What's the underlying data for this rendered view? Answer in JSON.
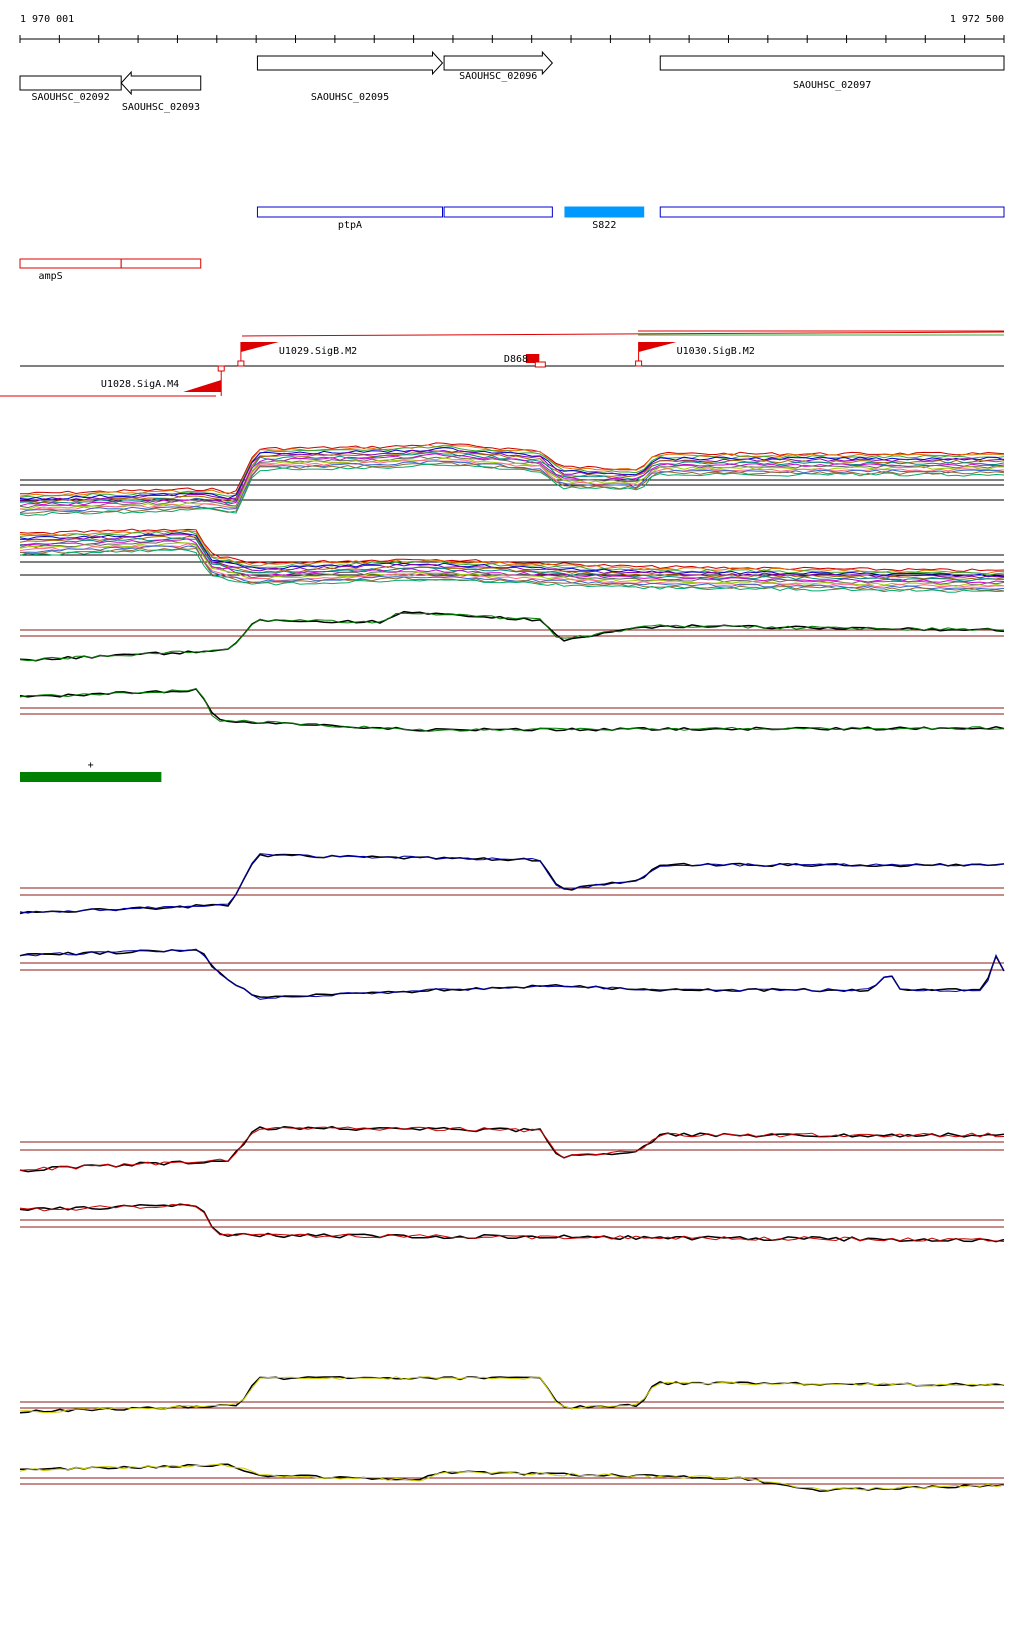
{
  "ruler": {
    "start_label": "1 970 001",
    "end_label": "1 972 500",
    "start": 1970001,
    "end": 1972500
  },
  "colors": {
    "gene_outline": "#000000",
    "feature_blue": "#0000cc",
    "feature_blue_fill": "#0099ff",
    "feature_red": "#dd0000",
    "green": "#008000",
    "blue": "#0000aa",
    "red": "#cc0000",
    "yellow": "#cccc00",
    "baseline": "#8b1a1a"
  },
  "genes": [
    {
      "label": "SAOUHSC_02092",
      "start": 1970001,
      "end": 1970258,
      "strand": "none",
      "row": 0
    },
    {
      "label": "SAOUHSC_02093",
      "start": 1970258,
      "end": 1970460,
      "strand": "-",
      "row": 0
    },
    {
      "label": "SAOUHSC_02095",
      "start": 1970604,
      "end": 1971074,
      "strand": "+",
      "row": 1
    },
    {
      "label": "SAOUHSC_02096",
      "start": 1971078,
      "end": 1971353,
      "strand": "+",
      "row": 1
    },
    {
      "label": "SAOUHSC_02097",
      "start": 1971627,
      "end": 1972500,
      "strand": "none",
      "row": 1
    }
  ],
  "blue_features": [
    {
      "label": "ptpA",
      "start": 1970604,
      "end": 1971074,
      "filled": false
    },
    {
      "label": "",
      "start": 1971078,
      "end": 1971353,
      "filled": false
    },
    {
      "label": "S822",
      "start": 1971385,
      "end": 1971585,
      "filled": true
    },
    {
      "label": "",
      "start": 1971627,
      "end": 1972500,
      "filled": false
    }
  ],
  "red_features": [
    {
      "label": "ampS",
      "start": 1970001,
      "end": 1970258
    },
    {
      "label": "",
      "start": 1970258,
      "end": 1970460
    }
  ],
  "promoters": [
    {
      "label": "U1028.SigA.M4",
      "pos": 1970512,
      "strand": "-"
    },
    {
      "label": "U1029.SigB.M2",
      "pos": 1970562,
      "strand": "+"
    },
    {
      "label": "U1030.SigB.M2",
      "pos": 1971572,
      "strand": "+"
    }
  ],
  "terminator": {
    "label": "D868",
    "start": 1971230,
    "end": 1971330
  },
  "green_bar": {
    "label": "+",
    "start": 1970001,
    "end": 1970360
  }
}
